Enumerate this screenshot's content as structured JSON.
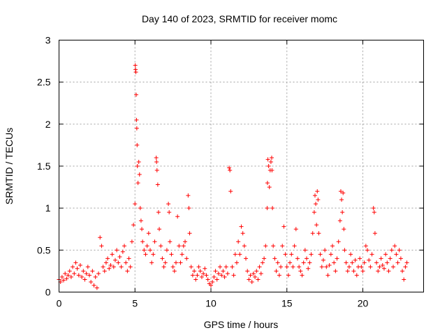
{
  "chart_data": {
    "type": "scatter",
    "title": "Day 140 of 2023, SRMTID for receiver momc",
    "xlabel": "GPS time / hours",
    "ylabel": "SRMTID / TECUs",
    "xlim": [
      0,
      24
    ],
    "ylim": [
      0,
      3
    ],
    "x_ticks": [
      0,
      5,
      10,
      15,
      20
    ],
    "x_tick_labels": [
      "0",
      "5",
      "10",
      "15",
      "20"
    ],
    "y_ticks": [
      0,
      0.5,
      1,
      1.5,
      2,
      2.5,
      3
    ],
    "y_tick_labels": [
      "0",
      "0.5",
      "1",
      "1.5",
      "2",
      "2.5",
      "3"
    ],
    "grid": true,
    "marker": "plus",
    "series": [
      {
        "name": "SRMTID",
        "color": "#ff0000",
        "points": [
          [
            0.0,
            0.15
          ],
          [
            0.1,
            0.12
          ],
          [
            0.2,
            0.18
          ],
          [
            0.3,
            0.14
          ],
          [
            0.4,
            0.22
          ],
          [
            0.5,
            0.16
          ],
          [
            0.6,
            0.2
          ],
          [
            0.7,
            0.25
          ],
          [
            0.8,
            0.18
          ],
          [
            0.9,
            0.3
          ],
          [
            1.0,
            0.22
          ],
          [
            1.1,
            0.35
          ],
          [
            1.2,
            0.28
          ],
          [
            1.3,
            0.2
          ],
          [
            1.4,
            0.32
          ],
          [
            1.5,
            0.18
          ],
          [
            1.6,
            0.25
          ],
          [
            1.7,
            0.15
          ],
          [
            1.8,
            0.22
          ],
          [
            1.9,
            0.3
          ],
          [
            2.0,
            0.2
          ],
          [
            2.1,
            0.12
          ],
          [
            2.2,
            0.25
          ],
          [
            2.3,
            0.08
          ],
          [
            2.4,
            0.18
          ],
          [
            2.5,
            0.05
          ],
          [
            2.6,
            0.22
          ],
          [
            2.7,
            0.65
          ],
          [
            2.8,
            0.55
          ],
          [
            2.9,
            0.3
          ],
          [
            3.0,
            0.25
          ],
          [
            3.1,
            0.35
          ],
          [
            3.2,
            0.4
          ],
          [
            3.3,
            0.28
          ],
          [
            3.4,
            0.32
          ],
          [
            3.5,
            0.45
          ],
          [
            3.6,
            0.3
          ],
          [
            3.7,
            0.38
          ],
          [
            3.8,
            0.5
          ],
          [
            3.9,
            0.35
          ],
          [
            4.0,
            0.42
          ],
          [
            4.1,
            0.3
          ],
          [
            4.2,
            0.48
          ],
          [
            4.3,
            0.55
          ],
          [
            4.4,
            0.35
          ],
          [
            4.5,
            0.25
          ],
          [
            4.6,
            0.4
          ],
          [
            4.7,
            0.3
          ],
          [
            4.8,
            0.6
          ],
          [
            4.9,
            0.8
          ],
          [
            5.0,
            1.05
          ],
          [
            5.02,
            2.7
          ],
          [
            5.04,
            2.65
          ],
          [
            5.06,
            2.62
          ],
          [
            5.08,
            2.35
          ],
          [
            5.1,
            2.05
          ],
          [
            5.12,
            1.95
          ],
          [
            5.14,
            1.75
          ],
          [
            5.16,
            1.5
          ],
          [
            5.2,
            1.3
          ],
          [
            5.25,
            1.55
          ],
          [
            5.3,
            1.4
          ],
          [
            5.35,
            1.0
          ],
          [
            5.4,
            0.85
          ],
          [
            5.45,
            0.75
          ],
          [
            5.5,
            0.6
          ],
          [
            5.6,
            0.5
          ],
          [
            5.7,
            0.45
          ],
          [
            5.8,
            0.55
          ],
          [
            5.9,
            0.7
          ],
          [
            6.0,
            0.5
          ],
          [
            6.1,
            0.35
          ],
          [
            6.2,
            0.45
          ],
          [
            6.3,
            0.6
          ],
          [
            6.4,
            1.6
          ],
          [
            6.42,
            1.55
          ],
          [
            6.45,
            1.45
          ],
          [
            6.5,
            1.28
          ],
          [
            6.55,
            0.95
          ],
          [
            6.6,
            0.75
          ],
          [
            6.7,
            0.55
          ],
          [
            6.8,
            0.4
          ],
          [
            6.9,
            0.3
          ],
          [
            7.0,
            0.35
          ],
          [
            7.1,
            0.5
          ],
          [
            7.2,
            1.05
          ],
          [
            7.25,
            0.95
          ],
          [
            7.3,
            0.6
          ],
          [
            7.4,
            0.45
          ],
          [
            7.5,
            0.3
          ],
          [
            7.6,
            0.25
          ],
          [
            7.7,
            0.35
          ],
          [
            7.8,
            0.9
          ],
          [
            7.9,
            0.55
          ],
          [
            8.0,
            0.35
          ],
          [
            8.1,
            0.45
          ],
          [
            8.2,
            0.55
          ],
          [
            8.3,
            0.6
          ],
          [
            8.4,
            0.4
          ],
          [
            8.5,
            1.15
          ],
          [
            8.55,
            1.0
          ],
          [
            8.6,
            0.7
          ],
          [
            8.7,
            0.3
          ],
          [
            8.8,
            0.2
          ],
          [
            8.9,
            0.25
          ],
          [
            9.0,
            0.15
          ],
          [
            9.1,
            0.2
          ],
          [
            9.2,
            0.3
          ],
          [
            9.3,
            0.25
          ],
          [
            9.4,
            0.18
          ],
          [
            9.5,
            0.22
          ],
          [
            9.6,
            0.28
          ],
          [
            9.7,
            0.2
          ],
          [
            9.8,
            0.15
          ],
          [
            9.9,
            0.1
          ],
          [
            10.0,
            0.08
          ],
          [
            10.1,
            0.12
          ],
          [
            10.2,
            0.18
          ],
          [
            10.3,
            0.25
          ],
          [
            10.4,
            0.15
          ],
          [
            10.5,
            0.22
          ],
          [
            10.6,
            0.3
          ],
          [
            10.7,
            0.2
          ],
          [
            10.8,
            0.25
          ],
          [
            10.9,
            0.18
          ],
          [
            11.0,
            0.3
          ],
          [
            11.1,
            0.22
          ],
          [
            11.2,
            1.48
          ],
          [
            11.25,
            1.45
          ],
          [
            11.3,
            1.2
          ],
          [
            11.4,
            0.3
          ],
          [
            11.5,
            0.2
          ],
          [
            11.6,
            0.45
          ],
          [
            11.7,
            0.35
          ],
          [
            11.8,
            0.6
          ],
          [
            11.9,
            0.45
          ],
          [
            12.0,
            0.78
          ],
          [
            12.1,
            0.7
          ],
          [
            12.2,
            0.55
          ],
          [
            12.3,
            0.4
          ],
          [
            12.4,
            0.25
          ],
          [
            12.5,
            0.15
          ],
          [
            12.6,
            0.2
          ],
          [
            12.7,
            0.12
          ],
          [
            12.8,
            0.22
          ],
          [
            12.9,
            0.18
          ],
          [
            13.0,
            0.25
          ],
          [
            13.1,
            0.15
          ],
          [
            13.2,
            0.3
          ],
          [
            13.3,
            0.22
          ],
          [
            13.4,
            0.35
          ],
          [
            13.5,
            0.4
          ],
          [
            13.6,
            0.55
          ],
          [
            13.7,
            1.0
          ],
          [
            13.72,
            1.3
          ],
          [
            13.75,
            1.58
          ],
          [
            13.8,
            1.5
          ],
          [
            13.85,
            1.25
          ],
          [
            13.9,
            1.45
          ],
          [
            13.95,
            1.55
          ],
          [
            14.0,
            1.6
          ],
          [
            14.02,
            1.45
          ],
          [
            14.05,
            1.0
          ],
          [
            14.1,
            0.55
          ],
          [
            14.2,
            0.4
          ],
          [
            14.3,
            0.25
          ],
          [
            14.4,
            0.35
          ],
          [
            14.5,
            0.2
          ],
          [
            14.6,
            0.3
          ],
          [
            14.7,
            0.55
          ],
          [
            14.8,
            0.78
          ],
          [
            14.9,
            0.45
          ],
          [
            15.0,
            0.3
          ],
          [
            15.1,
            0.2
          ],
          [
            15.2,
            0.35
          ],
          [
            15.3,
            0.45
          ],
          [
            15.4,
            0.3
          ],
          [
            15.5,
            0.55
          ],
          [
            15.6,
            0.75
          ],
          [
            15.7,
            0.4
          ],
          [
            15.8,
            0.3
          ],
          [
            15.9,
            0.25
          ],
          [
            16.0,
            0.2
          ],
          [
            16.1,
            0.35
          ],
          [
            16.2,
            0.5
          ],
          [
            16.3,
            0.4
          ],
          [
            16.4,
            0.28
          ],
          [
            16.5,
            0.35
          ],
          [
            16.6,
            0.45
          ],
          [
            16.7,
            0.7
          ],
          [
            16.8,
            0.95
          ],
          [
            16.85,
            1.15
          ],
          [
            16.9,
            1.05
          ],
          [
            16.95,
            0.8
          ],
          [
            17.0,
            1.2
          ],
          [
            17.05,
            1.1
          ],
          [
            17.1,
            0.7
          ],
          [
            17.2,
            0.45
          ],
          [
            17.3,
            0.3
          ],
          [
            17.4,
            0.38
          ],
          [
            17.5,
            0.5
          ],
          [
            17.6,
            0.3
          ],
          [
            17.7,
            0.2
          ],
          [
            17.8,
            0.32
          ],
          [
            17.9,
            0.45
          ],
          [
            18.0,
            0.55
          ],
          [
            18.1,
            0.35
          ],
          [
            18.2,
            0.25
          ],
          [
            18.3,
            0.4
          ],
          [
            18.4,
            0.6
          ],
          [
            18.5,
            0.85
          ],
          [
            18.55,
            1.2
          ],
          [
            18.6,
            1.1
          ],
          [
            18.65,
            0.95
          ],
          [
            18.7,
            1.18
          ],
          [
            18.75,
            0.75
          ],
          [
            18.8,
            0.5
          ],
          [
            18.9,
            0.35
          ],
          [
            19.0,
            0.25
          ],
          [
            19.1,
            0.3
          ],
          [
            19.2,
            0.45
          ],
          [
            19.3,
            0.35
          ],
          [
            19.4,
            0.25
          ],
          [
            19.5,
            0.38
          ],
          [
            19.6,
            0.2
          ],
          [
            19.7,
            0.3
          ],
          [
            19.8,
            0.4
          ],
          [
            19.9,
            0.3
          ],
          [
            20.0,
            0.25
          ],
          [
            20.1,
            0.35
          ],
          [
            20.2,
            0.55
          ],
          [
            20.3,
            0.5
          ],
          [
            20.4,
            0.38
          ],
          [
            20.5,
            0.3
          ],
          [
            20.6,
            0.45
          ],
          [
            20.7,
            1.0
          ],
          [
            20.75,
            0.95
          ],
          [
            20.8,
            0.7
          ],
          [
            20.9,
            0.35
          ],
          [
            21.0,
            0.25
          ],
          [
            21.1,
            0.3
          ],
          [
            21.2,
            0.4
          ],
          [
            21.3,
            0.32
          ],
          [
            21.4,
            0.28
          ],
          [
            21.5,
            0.45
          ],
          [
            21.6,
            0.35
          ],
          [
            21.7,
            0.25
          ],
          [
            21.8,
            0.4
          ],
          [
            21.9,
            0.5
          ],
          [
            22.0,
            0.3
          ],
          [
            22.1,
            0.55
          ],
          [
            22.2,
            0.45
          ],
          [
            22.3,
            0.35
          ],
          [
            22.4,
            0.5
          ],
          [
            22.5,
            0.4
          ],
          [
            22.6,
            0.25
          ],
          [
            22.7,
            0.15
          ],
          [
            22.8,
            0.3
          ],
          [
            22.9,
            0.35
          ]
        ]
      }
    ]
  }
}
